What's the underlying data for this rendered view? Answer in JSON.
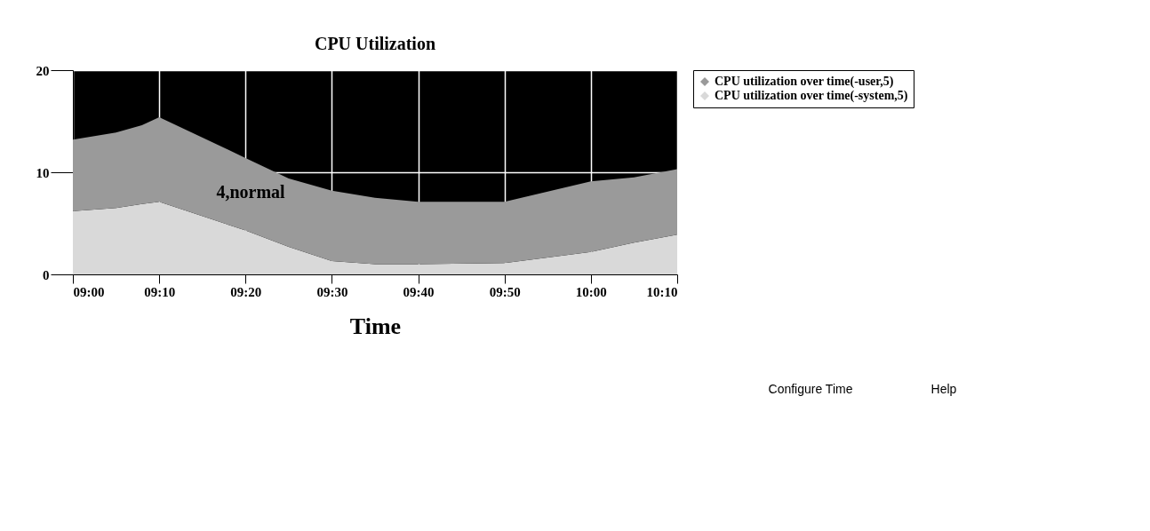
{
  "chart_data": {
    "type": "area",
    "title": "CPU Utilization",
    "xlabel": "Time",
    "x": [
      9.0,
      9.0833,
      9.1333,
      9.1667,
      9.3333,
      9.4167,
      9.5,
      9.5833,
      9.6667,
      9.8333,
      10.0,
      10.0833,
      10.1667
    ],
    "series": [
      {
        "name": "CPU utilization over time(-system,5)",
        "color": "#d9d9d9",
        "values": [
          6.2,
          6.5,
          6.9,
          7.1,
          4.3,
          2.7,
          1.3,
          1.0,
          1.0,
          1.1,
          2.2,
          3.1,
          3.9
        ]
      },
      {
        "name": "CPU utilization over time(-user,5)",
        "color": "#9a9a9a",
        "values": [
          7.0,
          7.4,
          7.7,
          8.3,
          7.1,
          6.7,
          6.9,
          6.5,
          6.1,
          6.0,
          6.9,
          6.4,
          6.4
        ]
      }
    ],
    "stacked": true,
    "xlim": [
      9.0,
      10.1667
    ],
    "xticks": [
      {
        "value": 9.0,
        "label": "09:00"
      },
      {
        "value": 9.1667,
        "label": "09:10"
      },
      {
        "value": 9.3333,
        "label": "09:20"
      },
      {
        "value": 9.5,
        "label": "09:30"
      },
      {
        "value": 9.6667,
        "label": "09:40"
      },
      {
        "value": 9.8333,
        "label": "09:50"
      },
      {
        "value": 10.0,
        "label": "10:00"
      },
      {
        "value": 10.1667,
        "label": "10:10"
      }
    ],
    "ylim": [
      0,
      20
    ],
    "yticks": [
      0,
      10,
      20
    ],
    "grid": true,
    "legend": "right",
    "marker": "none",
    "annotations": [
      "4,normal",
      "Configure Time",
      "Help"
    ]
  }
}
